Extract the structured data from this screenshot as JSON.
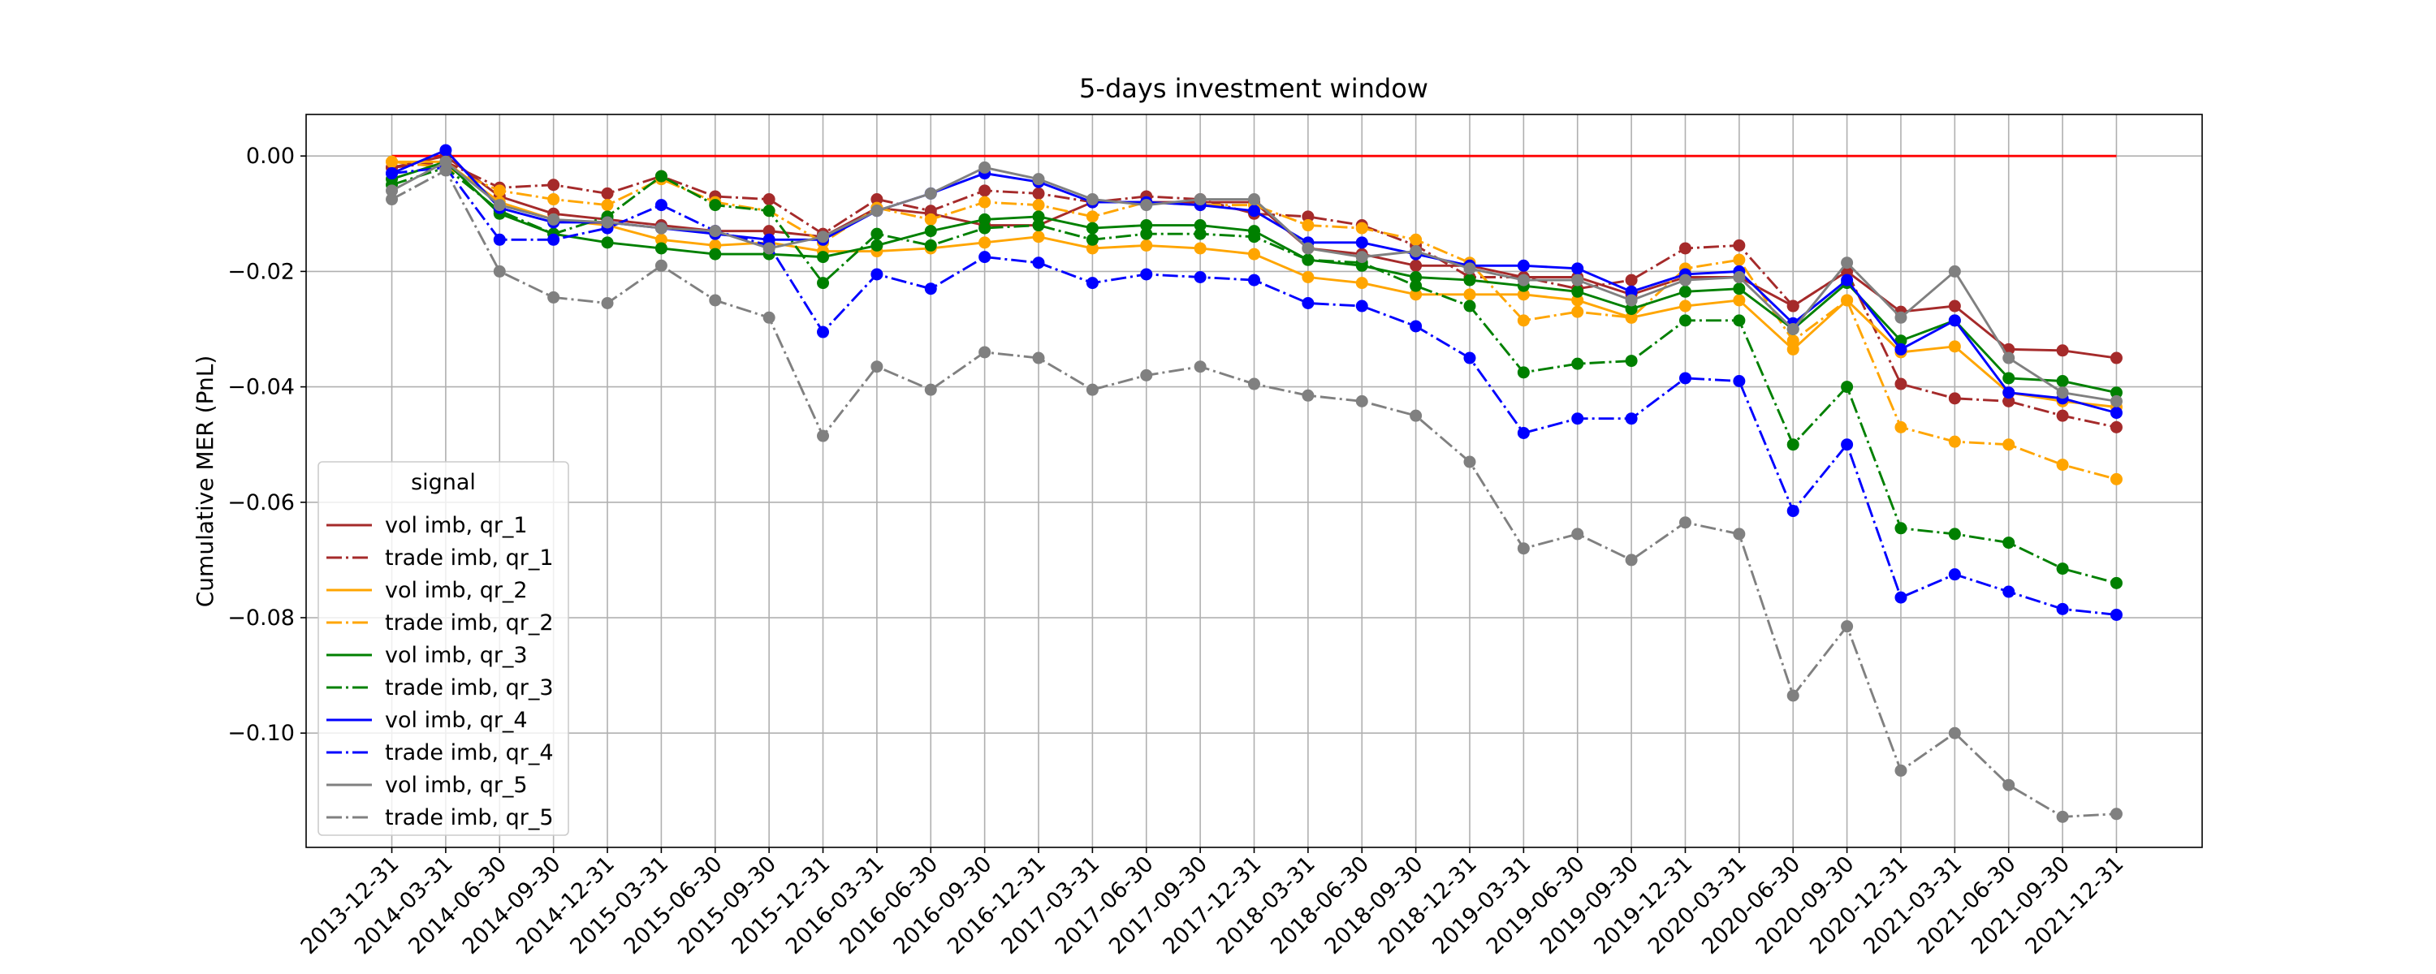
{
  "chart_data": {
    "type": "line",
    "title": "5-days investment window",
    "ylabel": "Cumulative MER (PnL)",
    "legend_title": "signal",
    "legend_position": "lower left",
    "grid": true,
    "markers": true,
    "categories": [
      "2013-12-31",
      "2014-03-31",
      "2014-06-30",
      "2014-09-30",
      "2014-12-31",
      "2015-03-31",
      "2015-06-30",
      "2015-09-30",
      "2015-12-31",
      "2016-03-31",
      "2016-06-30",
      "2016-09-30",
      "2016-12-31",
      "2017-03-31",
      "2017-06-30",
      "2017-09-30",
      "2017-12-31",
      "2018-03-31",
      "2018-06-30",
      "2018-09-30",
      "2018-12-31",
      "2019-03-31",
      "2019-06-30",
      "2019-09-30",
      "2019-12-31",
      "2020-03-31",
      "2020-06-30",
      "2020-09-30",
      "2020-12-31",
      "2021-03-31",
      "2021-06-30",
      "2021-09-30",
      "2021-12-31"
    ],
    "ylim": [
      -0.1198,
      0.0072
    ],
    "yticks": [
      {
        "value": 0,
        "label": "0.00"
      },
      {
        "value": -0.02,
        "label": "−0.02"
      },
      {
        "value": -0.04,
        "label": "−0.04"
      },
      {
        "value": -0.06,
        "label": "−0.06"
      },
      {
        "value": -0.08,
        "label": "−0.08"
      },
      {
        "value": -0.1,
        "label": "−0.10"
      }
    ],
    "reference_line": {
      "value": 0,
      "color": "#ff0000"
    },
    "series": [
      {
        "name": "vol imb, qr_1",
        "color": "#a52a2a",
        "linestyle": "solid",
        "values": [
          -0.002,
          0,
          -0.007,
          -0.01,
          -0.011,
          -0.012,
          -0.013,
          -0.013,
          -0.014,
          -0.009,
          -0.01,
          -0.012,
          -0.012,
          -0.008,
          -0.008,
          -0.008,
          -0.008,
          -0.016,
          -0.017,
          -0.019,
          -0.019,
          -0.021,
          -0.021,
          -0.024,
          -0.021,
          -0.021,
          -0.026,
          -0.02,
          -0.027,
          -0.026,
          -0.0335,
          -0.0337,
          -0.035
        ]
      },
      {
        "name": "trade imb, qr_1",
        "color": "#a52a2a",
        "linestyle": "dashdot",
        "values": [
          -0.002,
          -0.001,
          -0.0055,
          -0.005,
          -0.0065,
          -0.0035,
          -0.007,
          -0.0075,
          -0.0135,
          -0.0075,
          -0.0095,
          -0.006,
          -0.0065,
          -0.008,
          -0.007,
          -0.0075,
          -0.01,
          -0.0105,
          -0.012,
          -0.0155,
          -0.021,
          -0.021,
          -0.023,
          -0.0215,
          -0.016,
          -0.0155,
          -0.026,
          -0.02,
          -0.0395,
          -0.042,
          -0.0425,
          -0.045,
          -0.047
        ]
      },
      {
        "name": "vol imb, qr_2",
        "color": "#ffa500",
        "linestyle": "solid",
        "values": [
          -0.001,
          -0.001,
          -0.008,
          -0.011,
          -0.012,
          -0.0145,
          -0.0155,
          -0.015,
          -0.0165,
          -0.0165,
          -0.016,
          -0.015,
          -0.014,
          -0.016,
          -0.0155,
          -0.016,
          -0.017,
          -0.021,
          -0.022,
          -0.024,
          -0.024,
          -0.024,
          -0.025,
          -0.028,
          -0.026,
          -0.025,
          -0.0335,
          -0.025,
          -0.034,
          -0.033,
          -0.041,
          -0.0425,
          -0.0435
        ]
      },
      {
        "name": "trade imb, qr_2",
        "color": "#ffa500",
        "linestyle": "dashdot",
        "values": [
          -0.001,
          -0.002,
          -0.006,
          -0.0075,
          -0.0085,
          -0.004,
          -0.008,
          -0.0095,
          -0.015,
          -0.009,
          -0.011,
          -0.008,
          -0.0085,
          -0.0105,
          -0.008,
          -0.0085,
          -0.0085,
          -0.012,
          -0.0125,
          -0.0145,
          -0.0185,
          -0.0285,
          -0.027,
          -0.028,
          -0.0195,
          -0.018,
          -0.032,
          -0.025,
          -0.047,
          -0.0495,
          -0.05,
          -0.0535,
          -0.056
        ]
      },
      {
        "name": "vol imb, qr_3",
        "color": "#008000",
        "linestyle": "solid",
        "values": [
          -0.004,
          -0.001,
          -0.01,
          -0.0135,
          -0.015,
          -0.016,
          -0.017,
          -0.017,
          -0.0175,
          -0.0155,
          -0.013,
          -0.011,
          -0.0105,
          -0.0125,
          -0.012,
          -0.012,
          -0.013,
          -0.018,
          -0.019,
          -0.021,
          -0.0215,
          -0.0225,
          -0.0235,
          -0.0265,
          -0.0235,
          -0.023,
          -0.03,
          -0.022,
          -0.032,
          -0.0285,
          -0.0385,
          -0.039,
          -0.041
        ]
      },
      {
        "name": "trade imb, qr_3",
        "color": "#008000",
        "linestyle": "dashdot",
        "values": [
          -0.005,
          -0.002,
          -0.0095,
          -0.0135,
          -0.0105,
          -0.0035,
          -0.0085,
          -0.0095,
          -0.022,
          -0.0135,
          -0.0155,
          -0.0125,
          -0.012,
          -0.0145,
          -0.0135,
          -0.0135,
          -0.014,
          -0.018,
          -0.0185,
          -0.0225,
          -0.026,
          -0.0375,
          -0.036,
          -0.0355,
          -0.0285,
          -0.0285,
          -0.05,
          -0.04,
          -0.0645,
          -0.0655,
          -0.067,
          -0.0715,
          -0.074
        ]
      },
      {
        "name": "vol imb, qr_4",
        "color": "#0000ff",
        "linestyle": "solid",
        "values": [
          -0.003,
          0.001,
          -0.009,
          -0.0115,
          -0.0115,
          -0.0125,
          -0.0135,
          -0.0145,
          -0.0145,
          -0.0095,
          -0.0065,
          -0.003,
          -0.0045,
          -0.008,
          -0.008,
          -0.0085,
          -0.0095,
          -0.015,
          -0.015,
          -0.017,
          -0.019,
          -0.019,
          -0.0195,
          -0.0235,
          -0.0205,
          -0.02,
          -0.029,
          -0.0215,
          -0.0335,
          -0.0285,
          -0.041,
          -0.042,
          -0.0445
        ]
      },
      {
        "name": "trade imb, qr_4",
        "color": "#0000ff",
        "linestyle": "dashdot",
        "values": [
          -0.003,
          -0.002,
          -0.0145,
          -0.0145,
          -0.0125,
          -0.0085,
          -0.013,
          -0.0155,
          -0.0305,
          -0.0205,
          -0.023,
          -0.0175,
          -0.0185,
          -0.022,
          -0.0205,
          -0.021,
          -0.0215,
          -0.0255,
          -0.026,
          -0.0295,
          -0.035,
          -0.048,
          -0.0455,
          -0.0455,
          -0.0385,
          -0.039,
          -0.0615,
          -0.05,
          -0.0765,
          -0.0725,
          -0.0755,
          -0.0785,
          -0.0795
        ]
      },
      {
        "name": "vol imb, qr_5",
        "color": "#808080",
        "linestyle": "solid",
        "values": [
          -0.006,
          -0.001,
          -0.0085,
          -0.011,
          -0.0115,
          -0.0125,
          -0.013,
          -0.016,
          -0.014,
          -0.0095,
          -0.0065,
          -0.002,
          -0.004,
          -0.0075,
          -0.0085,
          -0.0075,
          -0.0075,
          -0.016,
          -0.0175,
          -0.0165,
          -0.0195,
          -0.0215,
          -0.0215,
          -0.025,
          -0.0215,
          -0.021,
          -0.03,
          -0.0185,
          -0.028,
          -0.02,
          -0.035,
          -0.041,
          -0.0425
        ]
      },
      {
        "name": "trade imb, qr_5",
        "color": "#808080",
        "linestyle": "dashdot",
        "values": [
          -0.0075,
          -0.0025,
          -0.02,
          -0.0245,
          -0.0255,
          -0.019,
          -0.025,
          -0.028,
          -0.0485,
          -0.0365,
          -0.0405,
          -0.034,
          -0.035,
          -0.0405,
          -0.038,
          -0.0365,
          -0.0395,
          -0.0415,
          -0.0425,
          -0.045,
          -0.053,
          -0.068,
          -0.0655,
          -0.07,
          -0.0635,
          -0.0655,
          -0.0935,
          -0.0815,
          -0.1065,
          -0.1,
          -0.109,
          -0.1145,
          -0.114
        ]
      }
    ]
  }
}
